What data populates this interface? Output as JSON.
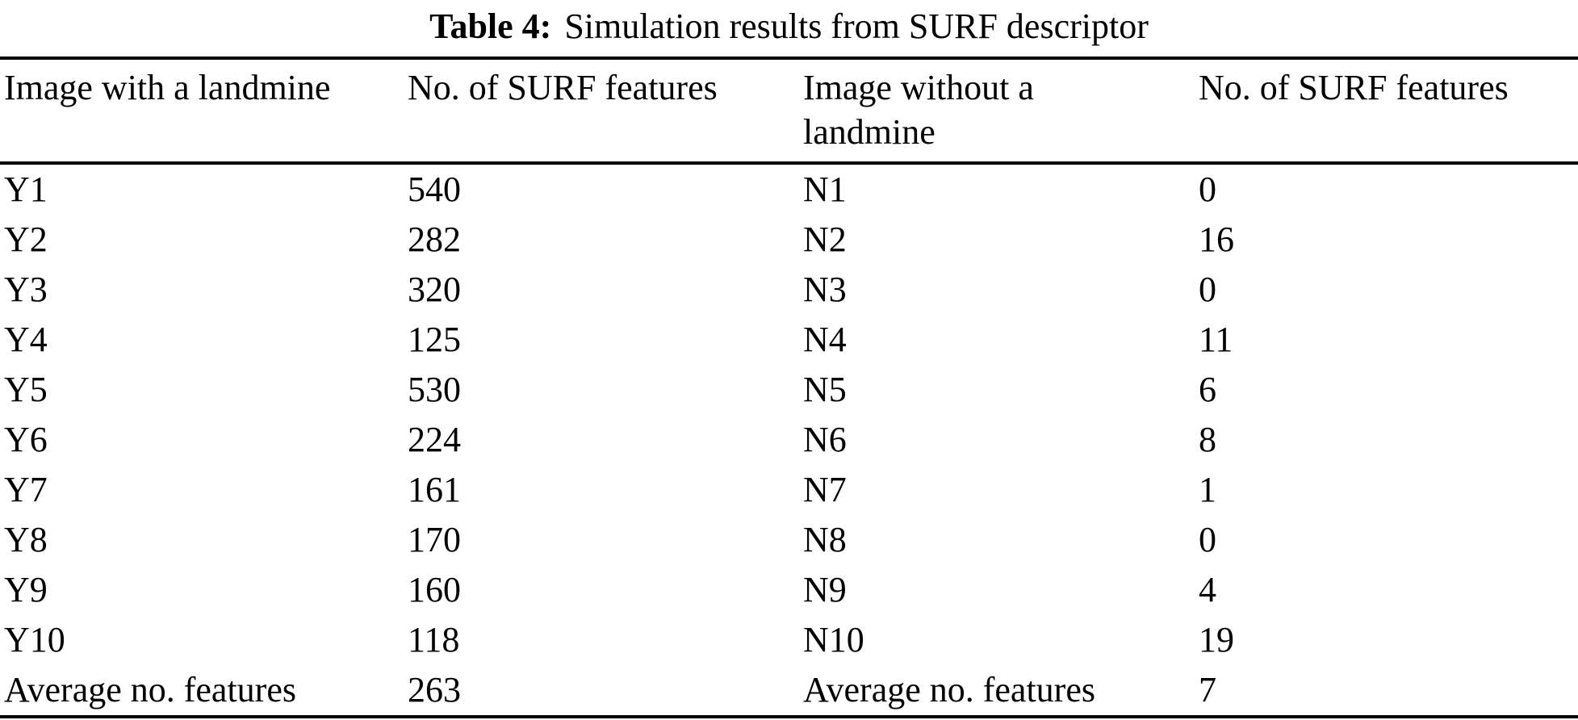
{
  "caption": {
    "label": "Table 4:",
    "text": "Simulation results from SURF descriptor"
  },
  "table": {
    "headers": [
      "Image with a landmine",
      "No. of SURF features",
      "Image without a landmine",
      "No. of SURF features"
    ],
    "rows": [
      [
        "Y1",
        "540",
        "N1",
        "0"
      ],
      [
        "Y2",
        "282",
        "N2",
        "16"
      ],
      [
        "Y3",
        "320",
        "N3",
        "0"
      ],
      [
        "Y4",
        "125",
        "N4",
        "11"
      ],
      [
        "Y5",
        "530",
        "N5",
        "6"
      ],
      [
        "Y6",
        "224",
        "N6",
        "8"
      ],
      [
        "Y7",
        "161",
        "N7",
        "1"
      ],
      [
        "Y8",
        "170",
        "N8",
        "0"
      ],
      [
        "Y9",
        "160",
        "N9",
        "4"
      ],
      [
        "Y10",
        "118",
        "N10",
        "19"
      ],
      [
        "Average no. features",
        "263",
        "Average no. features",
        "7"
      ]
    ]
  },
  "colors": {
    "text": "#000000",
    "background": "#ffffff",
    "rule": "#000000"
  },
  "chart_data": {
    "type": "table",
    "title": "Table 4: Simulation results from SURF descriptor",
    "columns": [
      "Image with a landmine",
      "No. of SURF features",
      "Image without a landmine",
      "No. of SURF features"
    ],
    "with_landmine": {
      "images": [
        "Y1",
        "Y2",
        "Y3",
        "Y4",
        "Y5",
        "Y6",
        "Y7",
        "Y8",
        "Y9",
        "Y10"
      ],
      "surf_features": [
        540,
        282,
        320,
        125,
        530,
        224,
        161,
        170,
        160,
        118
      ],
      "average_features": 263
    },
    "without_landmine": {
      "images": [
        "N1",
        "N2",
        "N3",
        "N4",
        "N5",
        "N6",
        "N7",
        "N8",
        "N9",
        "N10"
      ],
      "surf_features": [
        0,
        16,
        0,
        11,
        6,
        8,
        1,
        0,
        4,
        19
      ],
      "average_features": 7
    }
  }
}
